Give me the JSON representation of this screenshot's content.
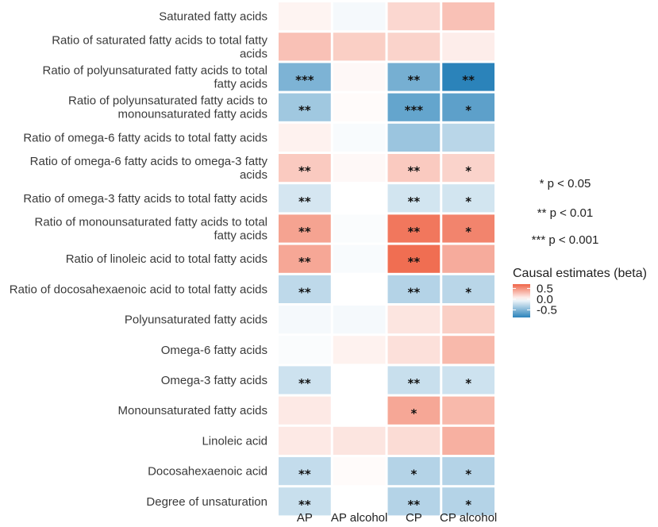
{
  "chart_data": {
    "type": "heatmap",
    "title": "",
    "xlabel": "",
    "ylabel": "",
    "columns": [
      "AP",
      "AP alcohol",
      "CP",
      "CP alcohol"
    ],
    "rows": [
      {
        "label": "Saturated fatty acids",
        "lines": [
          "Saturated fatty acids"
        ],
        "values": [
          0.05,
          -0.04,
          0.18,
          0.28
        ],
        "stars": [
          "",
          "",
          "",
          ""
        ]
      },
      {
        "label": "Ratio of saturated fatty acids to total fatty acids",
        "lines": [
          "Ratio of saturated fatty acids to total fatty",
          "acids"
        ],
        "values": [
          0.28,
          0.22,
          0.2,
          0.08
        ],
        "stars": [
          "",
          "",
          "",
          ""
        ]
      },
      {
        "label": "Ratio of polyunsaturated fatty acids to total fatty acids",
        "lines": [
          "Ratio of polyunsaturated fatty acids to total",
          "fatty acids"
        ],
        "values": [
          -0.52,
          0.03,
          -0.55,
          -0.85
        ],
        "stars": [
          "***",
          "",
          "**",
          "**"
        ]
      },
      {
        "label": "Ratio of polyunsaturated fatty acids to monounsaturated fatty acids",
        "lines": [
          "Ratio of polyunsaturated fatty acids to",
          "monounsaturated fatty acids"
        ],
        "values": [
          -0.38,
          0.02,
          -0.62,
          -0.65
        ],
        "stars": [
          "**",
          "",
          "***",
          "*"
        ]
      },
      {
        "label": "Ratio of omega-6 fatty acids to total fatty acids",
        "lines": [
          "Ratio of omega-6 fatty acids to total fatty acids"
        ],
        "values": [
          0.06,
          -0.03,
          -0.4,
          -0.28
        ],
        "stars": [
          "",
          "",
          "",
          ""
        ]
      },
      {
        "label": "Ratio of omega-6 fatty acids to omega-3 fatty acids",
        "lines": [
          "Ratio of omega-6 fatty acids to omega-3 fatty",
          "acids"
        ],
        "values": [
          0.24,
          0.03,
          0.24,
          0.2
        ],
        "stars": [
          "**",
          "",
          "**",
          "*"
        ]
      },
      {
        "label": "Ratio of omega-3 fatty acids to total fatty acids",
        "lines": [
          "Ratio of omega-3 fatty acids to total fatty acids"
        ],
        "values": [
          -0.17,
          0.0,
          -0.18,
          -0.18
        ],
        "stars": [
          "**",
          "",
          "**",
          "*"
        ]
      },
      {
        "label": "Ratio of monounsaturated fatty acids to total fatty acids",
        "lines": [
          "Ratio of monounsaturated fatty acids to total",
          "fatty acids"
        ],
        "values": [
          0.42,
          -0.02,
          0.62,
          0.56
        ],
        "stars": [
          "**",
          "",
          "**",
          "*"
        ]
      },
      {
        "label": "Ratio of linoleic acid to total fatty acids",
        "lines": [
          "Ratio of linoleic acid to total fatty acids"
        ],
        "values": [
          0.4,
          -0.03,
          0.66,
          0.38
        ],
        "stars": [
          "**",
          "",
          "**",
          ""
        ]
      },
      {
        "label": "Ratio of docosahexaenoic acid to total fatty acids",
        "lines": [
          "Ratio of docosahexaenoic acid to total fatty acids"
        ],
        "values": [
          -0.26,
          0.0,
          -0.3,
          -0.28
        ],
        "stars": [
          "**",
          "",
          "**",
          "*"
        ]
      },
      {
        "label": "Polyunsaturated fatty acids",
        "lines": [
          "Polyunsaturated fatty acids"
        ],
        "values": [
          -0.04,
          -0.04,
          0.12,
          0.22
        ],
        "stars": [
          "",
          "",
          "",
          ""
        ]
      },
      {
        "label": "Omega-6 fatty acids",
        "lines": [
          "Omega-6 fatty acids"
        ],
        "values": [
          -0.02,
          0.06,
          0.14,
          0.32
        ],
        "stars": [
          "",
          "",
          "",
          ""
        ]
      },
      {
        "label": "Omega-3 fatty acids",
        "lines": [
          "Omega-3 fatty acids"
        ],
        "values": [
          -0.2,
          0.0,
          -0.22,
          -0.2
        ],
        "stars": [
          "**",
          "",
          "**",
          "*"
        ]
      },
      {
        "label": "Monounsaturated fatty acids",
        "lines": [
          "Monounsaturated fatty acids"
        ],
        "values": [
          0.1,
          0.0,
          0.4,
          0.32
        ],
        "stars": [
          "",
          "",
          "*",
          ""
        ]
      },
      {
        "label": "Linoleic acid",
        "lines": [
          "Linoleic acid"
        ],
        "values": [
          0.1,
          0.12,
          0.16,
          0.36
        ],
        "stars": [
          "",
          "",
          "",
          ""
        ]
      },
      {
        "label": "Docosahexaenoic acid",
        "lines": [
          "Docosahexaenoic acid"
        ],
        "values": [
          -0.24,
          0.02,
          -0.3,
          -0.3
        ],
        "stars": [
          "**",
          "",
          "*",
          "*"
        ]
      },
      {
        "label": "Degree of unsaturation",
        "lines": [
          "Degree of unsaturation"
        ],
        "values": [
          -0.22,
          0.0,
          -0.3,
          -0.3
        ],
        "stars": [
          "**",
          "",
          "**",
          "*"
        ]
      }
    ],
    "significance_legend": [
      "* p < 0.05",
      "** p < 0.01",
      "*** p < 0.001"
    ],
    "colorbar": {
      "title": "Causal estimates (beta)",
      "ticks": [
        0.5,
        0.0,
        -0.5
      ],
      "tick_labels": [
        "0.5",
        "0.0",
        "-0.5"
      ],
      "range": [
        -0.85,
        0.7
      ],
      "low_color": "#2b83ba",
      "mid_color": "#ffffff",
      "high_color": "#ef6548"
    }
  }
}
